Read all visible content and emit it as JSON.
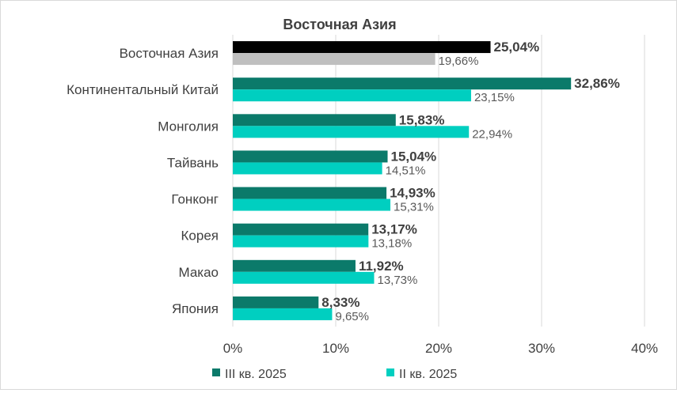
{
  "chart_data": {
    "type": "bar",
    "orientation": "horizontal",
    "title": "Восточная Азия",
    "categories": [
      "Восточная Азия",
      "Континентальный Китай",
      "Монголия",
      "Тайвань",
      "Гонконг",
      "Корея",
      "Макао",
      "Япония"
    ],
    "series": [
      {
        "name": "III кв. 2025",
        "color": "#0b7a6a",
        "highlight_color": "#000000",
        "values": [
          25.04,
          32.86,
          15.83,
          15.04,
          14.93,
          13.17,
          11.92,
          8.33
        ],
        "labels": [
          "25,04%",
          "32,86%",
          "15,83%",
          "15,04%",
          "14,93%",
          "13,17%",
          "11,92%",
          "8,33%"
        ]
      },
      {
        "name": "II кв. 2025",
        "color": "#00cfc0",
        "highlight_color": "#bfbfbf",
        "values": [
          19.66,
          23.15,
          22.94,
          14.51,
          15.31,
          13.18,
          13.73,
          9.65
        ],
        "labels": [
          "19,66%",
          "23,15%",
          "22,94%",
          "14,51%",
          "15,31%",
          "13,18%",
          "13,73%",
          "9,65%"
        ]
      }
    ],
    "xlim": [
      0,
      40
    ],
    "ticks": [
      0,
      10,
      20,
      30,
      40
    ],
    "tick_labels": [
      "0%",
      "10%",
      "20%",
      "30%",
      "40%"
    ],
    "grid": "vertical",
    "legend": "bottom",
    "legend_entries": [
      "III кв. 2025",
      "II кв. 2025"
    ]
  }
}
